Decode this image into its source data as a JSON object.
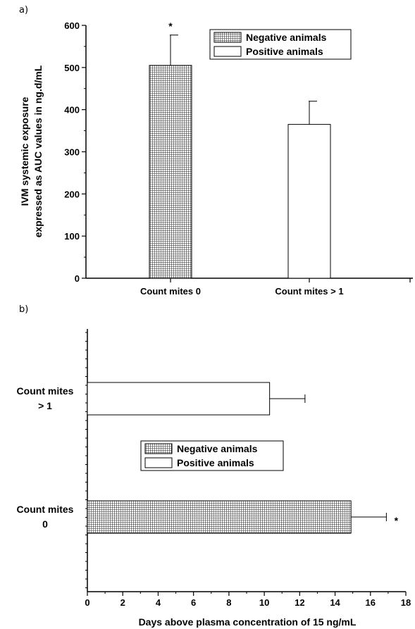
{
  "chart_data": [
    {
      "panel_label": "a)",
      "type": "bar",
      "orientation": "vertical",
      "categories": [
        "Count mites 0",
        "Count mites > 1"
      ],
      "values": [
        505,
        365
      ],
      "errors": [
        72,
        55
      ],
      "bar_style": [
        "hatched",
        "white"
      ],
      "significance": [
        "*",
        ""
      ],
      "ylabel_lines": [
        "IVM systemic exposure",
        "expressed as AUC values in ng.d/mL"
      ],
      "ylim": [
        0,
        600
      ],
      "yticks": [
        "0",
        "100",
        "200",
        "300",
        "400",
        "500",
        "600"
      ],
      "legend": [
        "Negative animals",
        "Positive animals"
      ],
      "legend_placement": "top-right",
      "grid": false
    },
    {
      "panel_label": "b)",
      "type": "bar",
      "orientation": "horizontal",
      "categories": [
        [
          "Count mites",
          "> 1"
        ],
        [
          "Count mites",
          "0"
        ]
      ],
      "values": [
        10.3,
        14.9
      ],
      "errors": [
        2.0,
        2.0
      ],
      "bar_style": [
        "white",
        "hatched"
      ],
      "significance": [
        "",
        "*"
      ],
      "xlabel": "Days above plasma concentration of 15 ng/mL",
      "xlim": [
        0,
        18
      ],
      "xticks": [
        "0",
        "2",
        "4",
        "6",
        "8",
        "10",
        "12",
        "14",
        "16",
        "18"
      ],
      "legend": [
        "Negative animals",
        "Positive animals"
      ],
      "legend_placement": "center",
      "grid": false
    }
  ],
  "colors": {
    "axis": "#000000",
    "bar_fill_white": "#ffffff",
    "hatch": "#333333"
  }
}
